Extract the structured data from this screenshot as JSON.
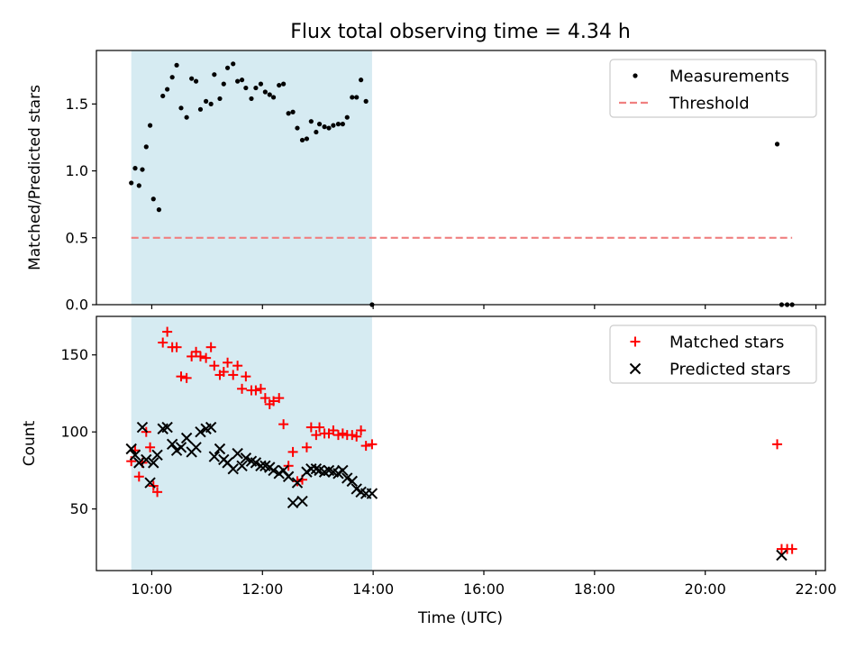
{
  "title": "Flux total observing time = 4.34 h",
  "xlabel": "Time (UTC)",
  "colors": {
    "shade": "#add8e6",
    "measurement": "#000000",
    "threshold": "#f08080",
    "matched": "#ff0000",
    "predicted": "#000000"
  },
  "chart_data": [
    {
      "type": "scatter",
      "panel": "top",
      "ylabel": "Matched/Predicted stars",
      "xlim_hours": [
        9.0,
        22.17
      ],
      "ylim": [
        0,
        1.9
      ],
      "yticks": [
        0.0,
        0.5,
        1.0,
        1.5
      ],
      "yticklabels": [
        "0.0",
        "0.5",
        "1.0",
        "1.5"
      ],
      "xticks_hours": [
        10,
        12,
        14,
        16,
        18,
        20,
        22
      ],
      "xticklabels": [
        "10:00",
        "12:00",
        "14:00",
        "16:00",
        "18:00",
        "20:00",
        "22:00"
      ],
      "shaded_interval_hours": [
        9.63,
        13.98
      ],
      "legend": {
        "position": "upper right",
        "entries": [
          "Measurements",
          "Threshold"
        ]
      },
      "series": [
        {
          "name": "Measurements",
          "marker": "dot",
          "x": [
            9.63,
            9.7,
            9.77,
            9.83,
            9.9,
            9.97,
            10.03,
            10.13,
            10.2,
            10.28,
            10.37,
            10.45,
            10.53,
            10.63,
            10.72,
            10.8,
            10.88,
            10.98,
            11.07,
            11.13,
            11.23,
            11.3,
            11.37,
            11.47,
            11.55,
            11.63,
            11.7,
            11.8,
            11.88,
            11.97,
            12.05,
            12.13,
            12.2,
            12.3,
            12.38,
            12.47,
            12.55,
            12.63,
            12.72,
            12.8,
            12.88,
            12.97,
            13.03,
            13.12,
            13.2,
            13.28,
            13.37,
            13.45,
            13.53,
            13.62,
            13.7,
            13.78,
            13.87,
            13.98,
            21.3,
            21.38,
            21.48,
            21.57
          ],
          "y": [
            0.91,
            1.02,
            0.89,
            1.01,
            1.18,
            1.34,
            0.79,
            0.71,
            1.56,
            1.61,
            1.7,
            1.79,
            1.47,
            1.4,
            1.69,
            1.67,
            1.46,
            1.52,
            1.5,
            1.72,
            1.54,
            1.65,
            1.77,
            1.8,
            1.67,
            1.68,
            1.62,
            1.54,
            1.62,
            1.65,
            1.59,
            1.57,
            1.55,
            1.64,
            1.65,
            1.43,
            1.44,
            1.32,
            1.23,
            1.24,
            1.37,
            1.29,
            1.35,
            1.33,
            1.32,
            1.34,
            1.35,
            1.35,
            1.4,
            1.55,
            1.55,
            1.68,
            1.52,
            0.0,
            1.2,
            0.0,
            0.0,
            0.0
          ]
        },
        {
          "name": "Threshold",
          "style": "dashed",
          "x": [
            9.63,
            21.57
          ],
          "y": [
            0.5,
            0.5
          ]
        }
      ]
    },
    {
      "type": "scatter",
      "panel": "bottom",
      "ylabel": "Count",
      "xlim_hours": [
        9.0,
        22.17
      ],
      "ylim": [
        10,
        175
      ],
      "yticks": [
        50,
        100,
        150
      ],
      "yticklabels": [
        "50",
        "100",
        "150"
      ],
      "xticks_hours": [
        10,
        12,
        14,
        16,
        18,
        20,
        22
      ],
      "xticklabels": [
        "10:00",
        "12:00",
        "14:00",
        "16:00",
        "18:00",
        "20:00",
        "22:00"
      ],
      "shaded_interval_hours": [
        9.63,
        13.98
      ],
      "legend": {
        "position": "upper right",
        "entries": [
          "Matched stars",
          "Predicted stars"
        ]
      },
      "series": [
        {
          "name": "Matched stars",
          "marker": "plus",
          "x": [
            9.63,
            9.7,
            9.77,
            9.83,
            9.9,
            9.97,
            10.03,
            10.1,
            10.2,
            10.28,
            10.37,
            10.45,
            10.53,
            10.63,
            10.72,
            10.8,
            10.88,
            10.98,
            11.07,
            11.13,
            11.23,
            11.3,
            11.37,
            11.47,
            11.55,
            11.63,
            11.7,
            11.8,
            11.88,
            11.97,
            12.05,
            12.13,
            12.2,
            12.3,
            12.38,
            12.47,
            12.55,
            12.63,
            12.72,
            12.8,
            12.88,
            12.97,
            13.03,
            13.12,
            13.2,
            13.28,
            13.37,
            13.45,
            13.53,
            13.62,
            13.7,
            13.78,
            13.87,
            13.98,
            21.3,
            21.38,
            21.48,
            21.57
          ],
          "y": [
            81,
            88,
            71,
            80,
            100,
            90,
            65,
            61,
            158,
            165,
            155,
            155,
            136,
            135,
            149,
            152,
            149,
            148,
            155,
            143,
            137,
            139,
            145,
            137,
            143,
            128,
            136,
            127,
            127,
            128,
            122,
            118,
            120,
            122,
            105,
            78,
            87,
            68,
            69,
            90,
            103,
            98,
            103,
            99,
            99,
            101,
            98,
            99,
            98,
            98,
            97,
            101,
            91,
            92,
            92,
            24,
            24,
            24
          ],
          "note": ""
        },
        {
          "name": "Predicted stars",
          "marker": "x",
          "x": [
            9.63,
            9.7,
            9.77,
            9.83,
            9.9,
            9.97,
            10.03,
            10.1,
            10.2,
            10.28,
            10.37,
            10.45,
            10.53,
            10.63,
            10.72,
            10.8,
            10.88,
            10.98,
            11.07,
            11.13,
            11.23,
            11.3,
            11.37,
            11.47,
            11.55,
            11.63,
            11.7,
            11.8,
            11.88,
            11.97,
            12.05,
            12.13,
            12.2,
            12.3,
            12.38,
            12.47,
            12.55,
            12.63,
            12.72,
            12.8,
            12.88,
            12.97,
            13.03,
            13.12,
            13.2,
            13.28,
            13.37,
            13.45,
            13.53,
            13.62,
            13.7,
            13.78,
            13.87,
            13.98,
            21.38
          ],
          "y": [
            89,
            85,
            80,
            103,
            82,
            67,
            80,
            85,
            102,
            103,
            92,
            88,
            90,
            96,
            87,
            90,
            100,
            102,
            103,
            84,
            89,
            82,
            80,
            76,
            86,
            78,
            83,
            81,
            80,
            78,
            78,
            77,
            75,
            73,
            75,
            71,
            54,
            67,
            55,
            74,
            76,
            76,
            75,
            74,
            75,
            74,
            73,
            75,
            70,
            68,
            63,
            61,
            60,
            60,
            20
          ]
        }
      ]
    }
  ]
}
